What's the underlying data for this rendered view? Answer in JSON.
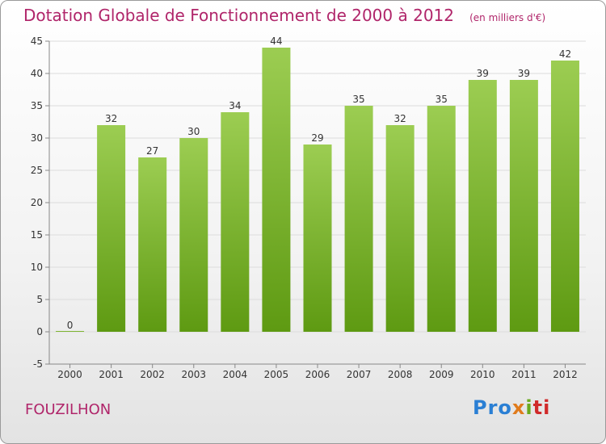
{
  "chart_data": {
    "type": "bar",
    "title": "Dotation Globale de Fonctionnement de 2000 à 2012",
    "subtitle": "(en milliers d'€)",
    "categories": [
      "2000",
      "2001",
      "2002",
      "2003",
      "2004",
      "2005",
      "2006",
      "2007",
      "2008",
      "2009",
      "2010",
      "2011",
      "2012"
    ],
    "values": [
      0,
      32,
      27,
      30,
      34,
      44,
      29,
      35,
      32,
      35,
      39,
      39,
      42
    ],
    "ylim": [
      -5,
      45
    ],
    "yticks": [
      -5,
      0,
      5,
      10,
      15,
      20,
      25,
      30,
      35,
      40,
      45
    ],
    "grid": true,
    "bar_color_top": "#9ccd52",
    "bar_color_bottom": "#5e9a12"
  },
  "footer": {
    "commune": "FOUZILHON",
    "logo_parts": [
      "Pro",
      "x",
      "i",
      "ti"
    ]
  },
  "colors": {
    "title": "#b0256a",
    "gridline": "#dcdcdc",
    "axis_text": "#333333"
  }
}
